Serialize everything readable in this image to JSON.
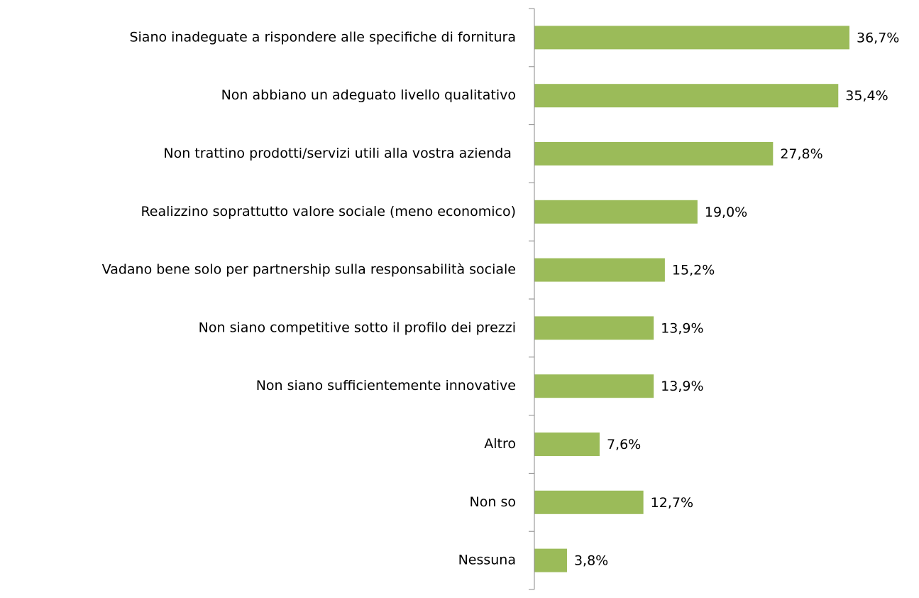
{
  "chart_data": {
    "type": "bar",
    "orientation": "horizontal",
    "categories": [
      "Siano inadeguate a rispondere alle specifiche di fornitura",
      "Non abbiano un adeguato livello qualitativo",
      "Non trattino prodotti/servizi utili alla vostra azienda ",
      "Realizzino soprattutto valore sociale (meno economico)",
      "Vadano bene solo per partnership sulla responsabilità sociale",
      "Non siano competitive sotto il profilo dei prezzi",
      "Non siano sufficientemente innovative",
      "Altro",
      "Non so",
      "Nessuna"
    ],
    "values": [
      36.7,
      35.4,
      27.8,
      19.0,
      15.2,
      13.9,
      13.9,
      7.6,
      12.7,
      3.8
    ],
    "value_labels": [
      "36,7%",
      "35,4%",
      "27,8%",
      "19,0%",
      "15,2%",
      "13,9%",
      "13,9%",
      "7,6%",
      "12,7%",
      "3,8%"
    ],
    "color": "#9bbb59"
  }
}
